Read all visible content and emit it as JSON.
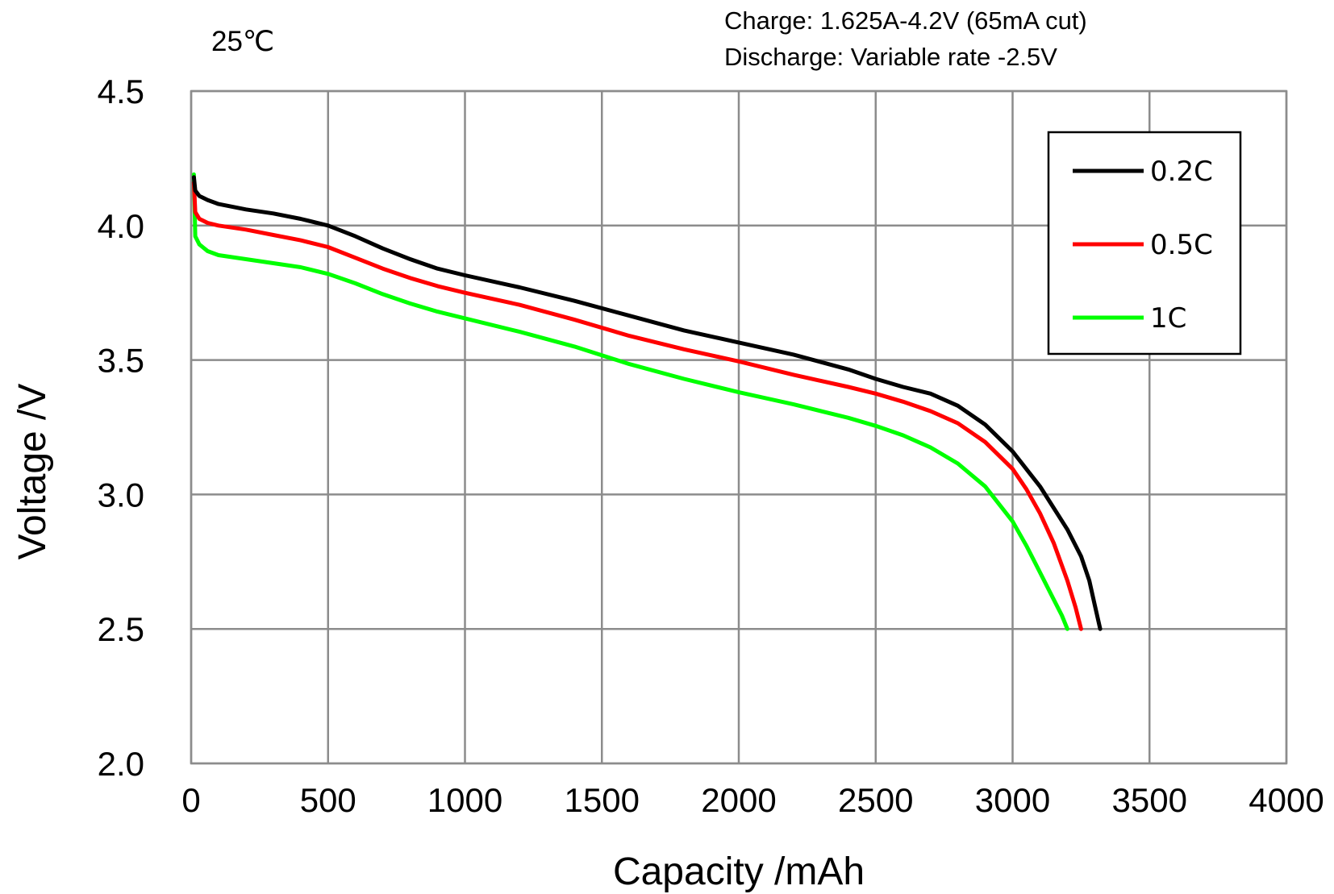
{
  "chart_data": {
    "type": "line",
    "title": "",
    "annotations": {
      "temperature": "25℃",
      "charge": "Charge: 1.625A-4.2V (65mA cut)",
      "discharge": "Discharge: Variable rate -2.5V"
    },
    "xlabel": "Capacity /mAh",
    "ylabel": "Voltage /V",
    "xlim": [
      0,
      4000
    ],
    "ylim": [
      2.0,
      4.5
    ],
    "xticks": [
      "0",
      "500",
      "1000",
      "1500",
      "2000",
      "2500",
      "3000",
      "3500",
      "4000"
    ],
    "yticks": [
      "2.0",
      "2.5",
      "3.0",
      "3.5",
      "4.0",
      "4.5"
    ],
    "grid": true,
    "legend": "top-right",
    "series": [
      {
        "name": "0.2C",
        "color": "#000000",
        "x": [
          10,
          15,
          30,
          60,
          100,
          200,
          300,
          400,
          500,
          600,
          700,
          800,
          900,
          1000,
          1200,
          1400,
          1600,
          1800,
          2000,
          2200,
          2400,
          2500,
          2600,
          2700,
          2800,
          2900,
          3000,
          3100,
          3200,
          3250,
          3280,
          3300,
          3320
        ],
        "y": [
          4.18,
          4.13,
          4.11,
          4.095,
          4.08,
          4.06,
          4.045,
          4.025,
          4.0,
          3.96,
          3.915,
          3.875,
          3.84,
          3.815,
          3.77,
          3.72,
          3.665,
          3.61,
          3.565,
          3.52,
          3.465,
          3.43,
          3.4,
          3.375,
          3.33,
          3.26,
          3.16,
          3.03,
          2.87,
          2.77,
          2.68,
          2.59,
          2.5
        ]
      },
      {
        "name": "0.5C",
        "color": "#ff0000",
        "x": [
          10,
          15,
          30,
          60,
          100,
          200,
          300,
          400,
          500,
          600,
          700,
          800,
          900,
          1000,
          1200,
          1400,
          1600,
          1800,
          2000,
          2200,
          2400,
          2500,
          2600,
          2700,
          2800,
          2900,
          3000,
          3050,
          3100,
          3150,
          3200,
          3230,
          3250
        ],
        "y": [
          4.16,
          4.05,
          4.025,
          4.01,
          4.0,
          3.985,
          3.965,
          3.945,
          3.92,
          3.88,
          3.84,
          3.805,
          3.775,
          3.75,
          3.705,
          3.65,
          3.59,
          3.54,
          3.495,
          3.445,
          3.4,
          3.375,
          3.345,
          3.31,
          3.265,
          3.195,
          3.095,
          3.02,
          2.93,
          2.82,
          2.68,
          2.58,
          2.5
        ]
      },
      {
        "name": "1C",
        "color": "#00ff00",
        "x": [
          10,
          15,
          30,
          60,
          100,
          200,
          300,
          400,
          500,
          600,
          700,
          800,
          900,
          1000,
          1200,
          1400,
          1600,
          1800,
          2000,
          2200,
          2400,
          2500,
          2600,
          2700,
          2800,
          2900,
          3000,
          3050,
          3100,
          3150,
          3180,
          3200
        ],
        "y": [
          4.19,
          3.96,
          3.93,
          3.905,
          3.89,
          3.875,
          3.86,
          3.845,
          3.82,
          3.785,
          3.745,
          3.71,
          3.68,
          3.655,
          3.605,
          3.55,
          3.485,
          3.43,
          3.38,
          3.335,
          3.285,
          3.255,
          3.22,
          3.175,
          3.115,
          3.03,
          2.9,
          2.81,
          2.71,
          2.61,
          2.55,
          2.5
        ]
      }
    ]
  }
}
